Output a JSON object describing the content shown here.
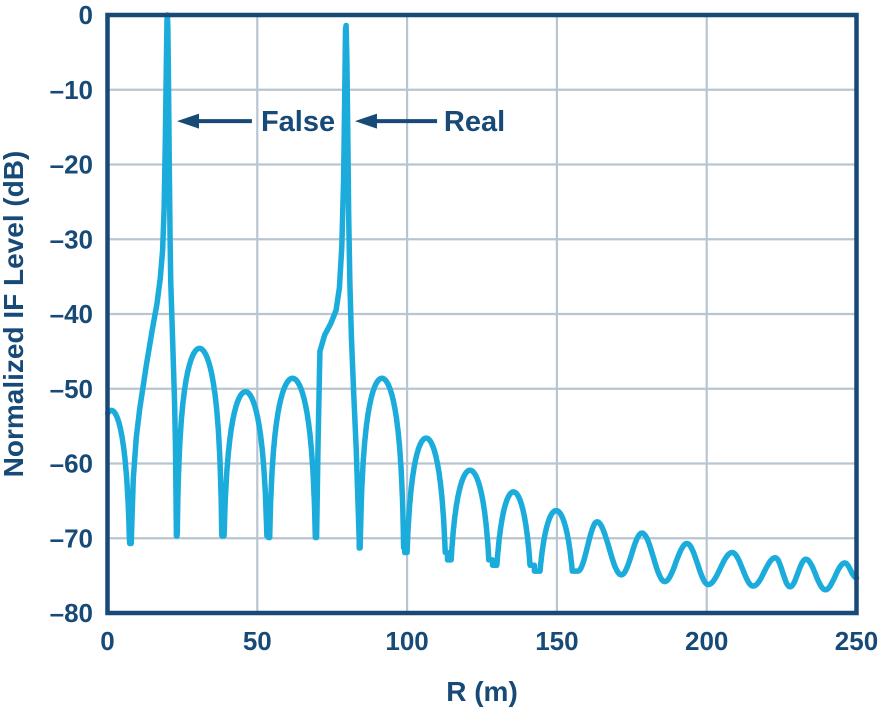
{
  "figure": {
    "background": "#FFFFFF"
  },
  "colors": {
    "curve": "#1CACDB",
    "ink": "#174A77",
    "grid": "#B9C5D1",
    "background": "#FFFFFF"
  },
  "chart_data": {
    "type": "line",
    "title": "",
    "xlabel": "R (m)",
    "ylabel": "Normalized IF Level (dB)",
    "xlim": [
      0,
      250
    ],
    "ylim": [
      -80,
      0
    ],
    "grid": true,
    "legend": "none",
    "xticks": {
      "values": [
        0,
        50,
        100,
        150,
        200,
        250
      ],
      "labels": [
        "0",
        "50",
        "100",
        "150",
        "200",
        "250"
      ]
    },
    "yticks": {
      "values": [
        0,
        -10,
        -20,
        -30,
        -40,
        -50,
        -60,
        -70,
        -80
      ],
      "labels": [
        "0",
        "–10",
        "–20",
        "–30",
        "–40",
        "–50",
        "–60",
        "–70",
        "–80"
      ]
    },
    "peaks": [
      {
        "name": "False",
        "r_m": 20.0,
        "level_db": 0.0
      },
      {
        "name": "Real",
        "r_m": 79.5,
        "level_db": -1.4
      }
    ],
    "annotations": [
      {
        "label": "False",
        "arrow_tip_r": 23.2,
        "arrow_tail_r": 48.2,
        "arrow_db": -14.2,
        "label_r": 63.6,
        "label_db": -14.2
      },
      {
        "label": "Real",
        "arrow_tip_r": 82.6,
        "arrow_tail_r": 110.0,
        "arrow_db": -14.2,
        "label_r": 122.5,
        "label_db": -14.2
      }
    ],
    "curve_segments": [
      {
        "shape": "lobe",
        "r_start": -5.3,
        "r_end": 7.9,
        "top_db": -52.9,
        "clip_db": -70.7
      },
      {
        "shape": "anchors",
        "points": [
          [
            7.9,
            -70.7
          ],
          [
            8.6,
            -62
          ],
          [
            9.6,
            -56.5
          ],
          [
            10.7,
            -52.8
          ],
          [
            13.0,
            -46.8
          ],
          [
            15.0,
            -42.0
          ],
          [
            16.5,
            -38.7
          ],
          [
            17.6,
            -35.3
          ],
          [
            18.4,
            -31.5
          ],
          [
            18.9,
            -26.0
          ],
          [
            19.3,
            -17.0
          ],
          [
            19.65,
            -6.0
          ],
          [
            19.85,
            -0.6
          ],
          [
            20.0,
            0.0
          ],
          [
            20.15,
            -2.0
          ],
          [
            20.35,
            -9.0
          ],
          [
            20.6,
            -19.0
          ],
          [
            20.85,
            -29.0
          ],
          [
            21.1,
            -35.5
          ],
          [
            21.5,
            -40.5
          ],
          [
            21.9,
            -45.5
          ],
          [
            22.4,
            -52.0
          ],
          [
            22.7,
            -58.0
          ],
          [
            23.0,
            -69.6
          ]
        ]
      },
      {
        "shape": "lobe",
        "r_start": 23.0,
        "r_end": 38.4,
        "top_db": -44.6,
        "clip_db": -69.7
      },
      {
        "shape": "lobe",
        "r_start": 38.4,
        "r_end": 53.7,
        "top_db": -50.4,
        "clip_db": -69.7
      },
      {
        "shape": "lobe",
        "r_start": 53.7,
        "r_end": 69.8,
        "top_db": -48.6,
        "clip_db": -69.9
      },
      {
        "shape": "anchors",
        "points": [
          [
            69.8,
            -69.9
          ],
          [
            70.3,
            -57.0
          ],
          [
            70.9,
            -45.0
          ],
          [
            72.5,
            -42.8
          ],
          [
            74.5,
            -41.3
          ],
          [
            76.3,
            -39.5
          ],
          [
            77.4,
            -36.5
          ],
          [
            78.2,
            -31.0
          ],
          [
            78.8,
            -22.0
          ],
          [
            79.2,
            -10.0
          ],
          [
            79.45,
            -1.9
          ],
          [
            79.65,
            -1.4
          ],
          [
            79.9,
            -6.0
          ],
          [
            80.2,
            -16.0
          ],
          [
            80.5,
            -27.0
          ],
          [
            80.9,
            -36.0
          ],
          [
            81.4,
            -43.0
          ],
          [
            82.1,
            -50.0
          ],
          [
            83.0,
            -58.0
          ],
          [
            84.0,
            -70.2
          ]
        ]
      },
      {
        "shape": "lobe",
        "r_start": 84.0,
        "r_end": 99.2,
        "top_db": -48.6,
        "clip_db": -71.3
      },
      {
        "shape": "lobe",
        "r_start": 99.2,
        "r_end": 113.5,
        "top_db": -56.6,
        "clip_db": -71.9
      },
      {
        "shape": "lobe",
        "r_start": 113.5,
        "r_end": 128.5,
        "top_db": -60.9,
        "clip_db": -72.9
      },
      {
        "shape": "lobe",
        "r_start": 128.5,
        "r_end": 142.5,
        "top_db": -63.8,
        "clip_db": -73.6
      },
      {
        "shape": "lobe",
        "r_start": 142.5,
        "r_end": 157.0,
        "top_db": -66.3,
        "clip_db": -74.4
      },
      {
        "shape": "wave",
        "points": [
          [
            157.0,
            -74.4
          ],
          [
            163.4,
            -67.8
          ],
          [
            171.5,
            -74.9
          ],
          [
            178.4,
            -69.3
          ],
          [
            186.0,
            -75.8
          ],
          [
            193.4,
            -70.7
          ],
          [
            200.5,
            -76.2
          ],
          [
            208.5,
            -71.9
          ],
          [
            215.5,
            -76.4
          ],
          [
            222.9,
            -72.6
          ],
          [
            227.8,
            -76.5
          ],
          [
            233.1,
            -72.8
          ],
          [
            239.6,
            -76.9
          ],
          [
            246.1,
            -73.3
          ],
          [
            250.0,
            -75.3
          ]
        ]
      }
    ]
  }
}
